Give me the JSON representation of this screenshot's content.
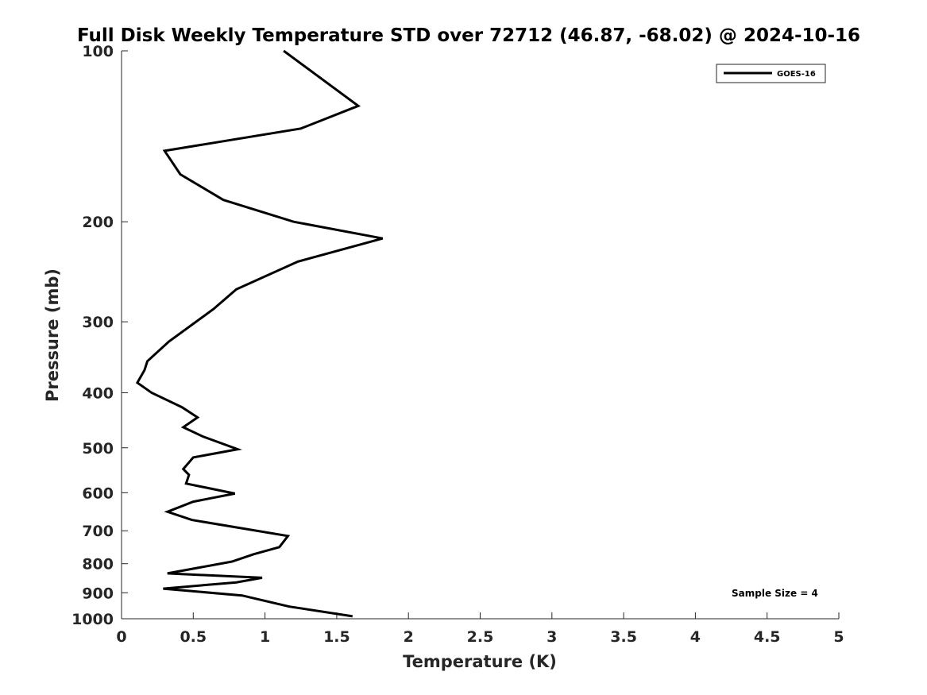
{
  "chart_data": {
    "type": "line",
    "title": "Full Disk Weekly Temperature STD over 72712 (46.87, -68.02) @ 2024-10-16",
    "xlabel": "Temperature (K)",
    "ylabel": "Pressure (mb)",
    "xlim": [
      0,
      5
    ],
    "ylim": [
      100,
      1000
    ],
    "yscale": "log",
    "y_reversed": true,
    "x_ticks": [
      0,
      0.5,
      1,
      1.5,
      2,
      2.5,
      3,
      3.5,
      4,
      4.5,
      5
    ],
    "x_tick_labels": [
      "0",
      "0.5",
      "1",
      "1.5",
      "2",
      "2.5",
      "3",
      "3.5",
      "4",
      "4.5",
      "5"
    ],
    "y_ticks": [
      100,
      200,
      300,
      400,
      500,
      600,
      700,
      800,
      900,
      1000
    ],
    "y_tick_labels": [
      "100",
      "200",
      "300",
      "400",
      "500",
      "600",
      "700",
      "800",
      "900",
      "1000"
    ],
    "grid": false,
    "legend": {
      "position": "top-right",
      "entries": [
        "GOES-16"
      ]
    },
    "annotation": "Sample Size = 4",
    "series": [
      {
        "name": "GOES-16",
        "color": "#000000",
        "x": [
          1.13,
          1.65,
          1.25,
          0.3,
          0.41,
          0.71,
          1.2,
          1.82,
          1.23,
          0.8,
          0.64,
          0.33,
          0.18,
          0.16,
          0.11,
          0.21,
          0.42,
          0.53,
          0.43,
          0.57,
          0.81,
          0.5,
          0.43,
          0.47,
          0.45,
          0.79,
          0.5,
          0.32,
          0.49,
          1.16,
          1.1,
          0.92,
          0.77,
          0.32,
          0.98,
          0.8,
          0.29,
          0.84,
          1.17,
          1.61
        ],
        "y": [
          100,
          125,
          137,
          150,
          165,
          183,
          200,
          214,
          235,
          263,
          285,
          325,
          352,
          365,
          384,
          400,
          424,
          442,
          460,
          478,
          503,
          520,
          545,
          558,
          578,
          602,
          622,
          648,
          670,
          715,
          748,
          770,
          793,
          832,
          847,
          863,
          885,
          910,
          952,
          990
        ]
      }
    ]
  }
}
